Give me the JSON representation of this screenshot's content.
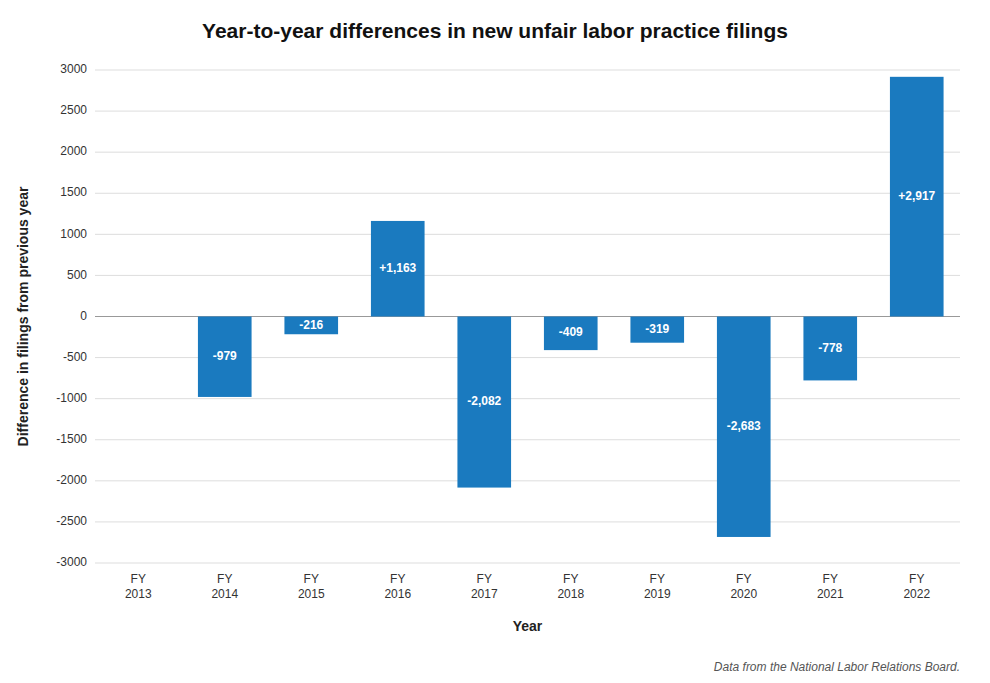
{
  "chart_data": {
    "type": "bar",
    "title": "Year-to-year differences in new unfair labor practice filings",
    "x_label": "Year",
    "y_label": "Difference in filings from previous year",
    "categories": [
      "FY\n2013",
      "FY\n2014",
      "FY\n2015",
      "FY\n2016",
      "FY\n2017",
      "FY\n2018",
      "FY\n2019",
      "FY\n2020",
      "FY\n2021",
      "FY\n2022"
    ],
    "values": [
      0,
      -979,
      -216,
      1163,
      -2082,
      -409,
      -319,
      -2683,
      -778,
      2917
    ],
    "value_labels": [
      null,
      "-979",
      "-216",
      "+1,163",
      "-2,082",
      "-409",
      "-319",
      "-2,683",
      "-778",
      "+2,917"
    ],
    "color": "#1a7abf",
    "ylim": [
      -3000,
      3000
    ],
    "yticks": [
      -3000,
      -2500,
      -2000,
      -1500,
      -1000,
      -500,
      0,
      500,
      1000,
      1500,
      2000,
      2500,
      3000
    ],
    "grid": true,
    "data_labels": true,
    "annotations": [
      "Data from the National Labor Relations Board."
    ]
  }
}
